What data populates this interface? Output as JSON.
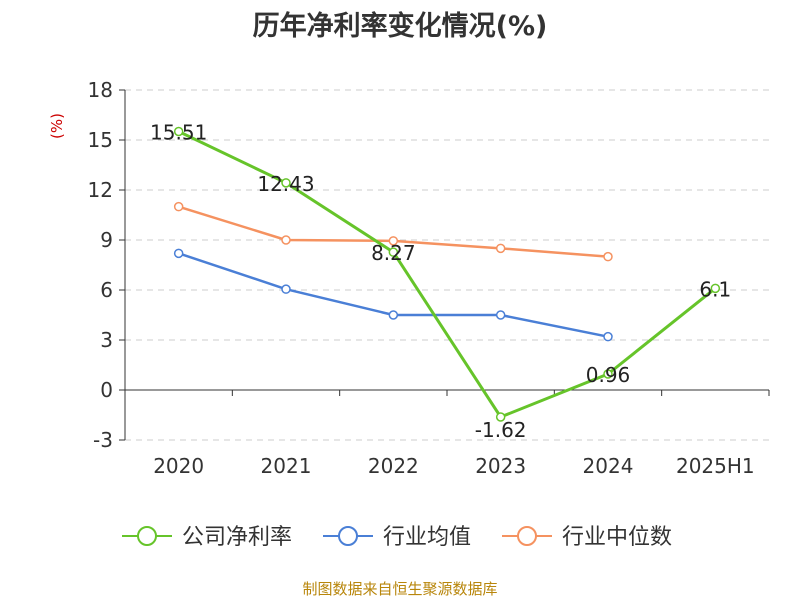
{
  "colors": {
    "company": "#66c42a",
    "industry_avg": "#4a7fd6",
    "industry_median": "#f59260",
    "ylabel": "#cc0000",
    "source": "#b8860b",
    "grid": "#cccccc",
    "axis": "#333333",
    "text": "#333333"
  },
  "chart_data": {
    "type": "line",
    "title": "历年净利率变化情况(%)",
    "xlabel": "",
    "ylabel": "(%)",
    "categories": [
      "2020",
      "2021",
      "2022",
      "2023",
      "2024",
      "2025H1"
    ],
    "ylim": [
      -3,
      18
    ],
    "yticks": [
      -3,
      0,
      3,
      6,
      9,
      12,
      15,
      18
    ],
    "grid": true,
    "legend_position": "bottom",
    "series": [
      {
        "name": "公司净利率",
        "values": [
          15.51,
          12.43,
          8.27,
          -1.62,
          0.96,
          6.1
        ],
        "labels": [
          "15.51",
          "12.43",
          "8.27",
          "-1.62",
          "0.96",
          "6.1"
        ]
      },
      {
        "name": "行业均值",
        "values": [
          8.2,
          6.05,
          4.5,
          4.5,
          3.2,
          null
        ]
      },
      {
        "name": "行业中位数",
        "values": [
          11.0,
          9.0,
          8.95,
          8.5,
          8.0,
          null
        ]
      }
    ]
  },
  "source_note": "制图数据来自恒生聚源数据库"
}
